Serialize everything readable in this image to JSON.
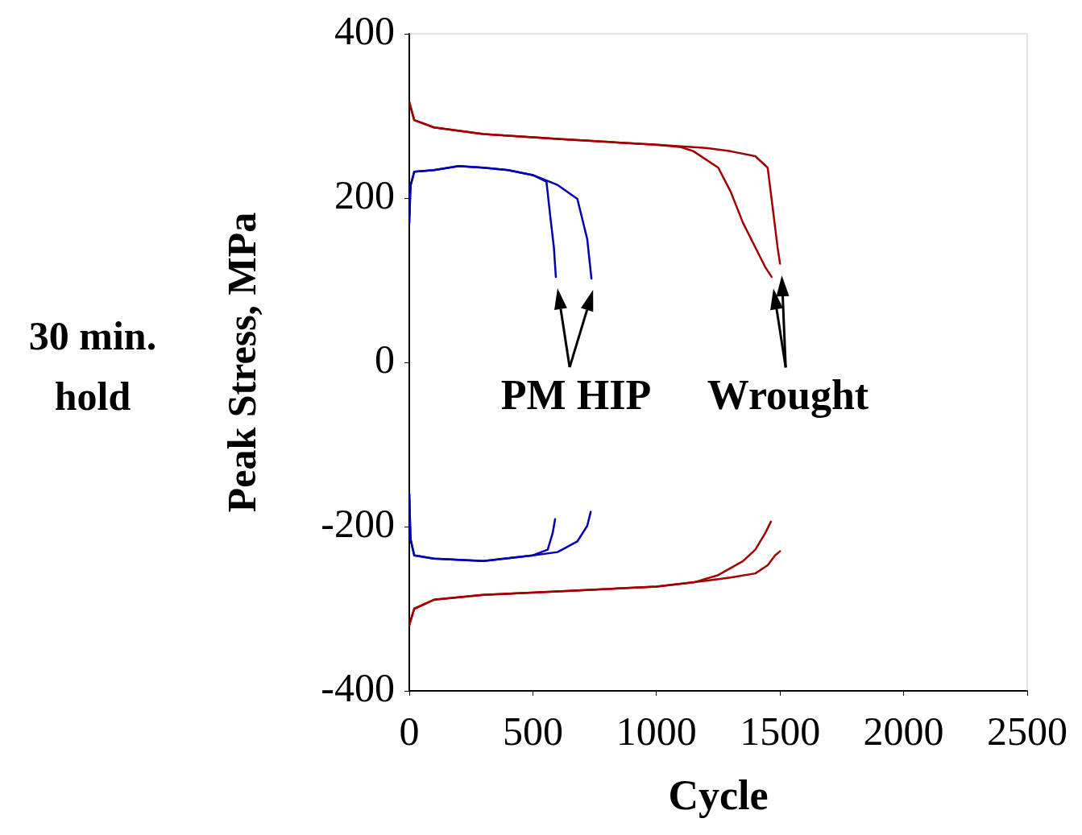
{
  "chart_data": {
    "type": "line",
    "xlabel": "Cycle",
    "ylabel": "Peak Stress, MPa",
    "xlim": [
      0,
      2500
    ],
    "xticks": [
      0,
      500,
      1000,
      1500,
      2000,
      2500
    ],
    "ylim": [
      -400,
      400
    ],
    "yticks": [
      -400,
      -200,
      0,
      200,
      400
    ],
    "grid": false,
    "legend": false,
    "marker": "none",
    "line_style": "solid",
    "annotations": [
      "30 min.\nhold",
      "PM HIP",
      "Wrought"
    ],
    "series": [
      {
        "color": "#0000b0",
        "x": [
          0,
          5,
          20,
          100,
          200,
          300,
          400,
          500,
          555,
          570,
          585,
          593
        ],
        "values": [
          170,
          215,
          232,
          234,
          239,
          237,
          234,
          228,
          220,
          179,
          140,
          104
        ]
      },
      {
        "color": "#0000b0",
        "x": [
          0,
          5,
          20,
          100,
          200,
          300,
          400,
          500,
          600,
          680,
          720,
          737
        ],
        "values": [
          170,
          215,
          232,
          234,
          239,
          237,
          234,
          228,
          216,
          199,
          150,
          102
        ]
      },
      {
        "color": "#0000b0",
        "x": [
          0,
          5,
          20,
          100,
          300,
          500,
          560,
          580,
          590
        ],
        "values": [
          -160,
          -215,
          -235,
          -239,
          -242,
          -235,
          -228,
          -208,
          -191
        ]
      },
      {
        "color": "#0000b0",
        "x": [
          0,
          5,
          20,
          100,
          300,
          500,
          600,
          680,
          720,
          734
        ],
        "values": [
          -160,
          -215,
          -235,
          -239,
          -242,
          -235,
          -231,
          -218,
          -199,
          -182
        ]
      },
      {
        "color": "#a00000",
        "x": [
          0,
          20,
          100,
          300,
          600,
          1000,
          1100,
          1150,
          1250,
          1300,
          1350,
          1400,
          1440,
          1466
        ],
        "values": [
          317,
          295,
          286,
          278,
          272,
          265,
          262,
          257,
          237,
          208,
          170,
          140,
          116,
          104
        ]
      },
      {
        "color": "#a00000",
        "x": [
          0,
          20,
          100,
          300,
          600,
          1000,
          1200,
          1300,
          1400,
          1450,
          1470,
          1490,
          1500
        ],
        "values": [
          317,
          295,
          286,
          278,
          272,
          265,
          261,
          257,
          251,
          237,
          189,
          140,
          120
        ]
      },
      {
        "color": "#a00000",
        "x": [
          0,
          20,
          100,
          300,
          600,
          1000,
          1150,
          1250,
          1350,
          1400,
          1440,
          1463
        ],
        "values": [
          -320,
          -300,
          -289,
          -283,
          -279,
          -273,
          -268,
          -259,
          -242,
          -228,
          -208,
          -194
        ]
      },
      {
        "color": "#a00000",
        "x": [
          0,
          20,
          100,
          300,
          600,
          1000,
          1200,
          1300,
          1400,
          1450,
          1480,
          1500
        ],
        "values": [
          -320,
          -300,
          -289,
          -283,
          -279,
          -273,
          -266,
          -262,
          -257,
          -247,
          -235,
          -230
        ]
      }
    ]
  }
}
